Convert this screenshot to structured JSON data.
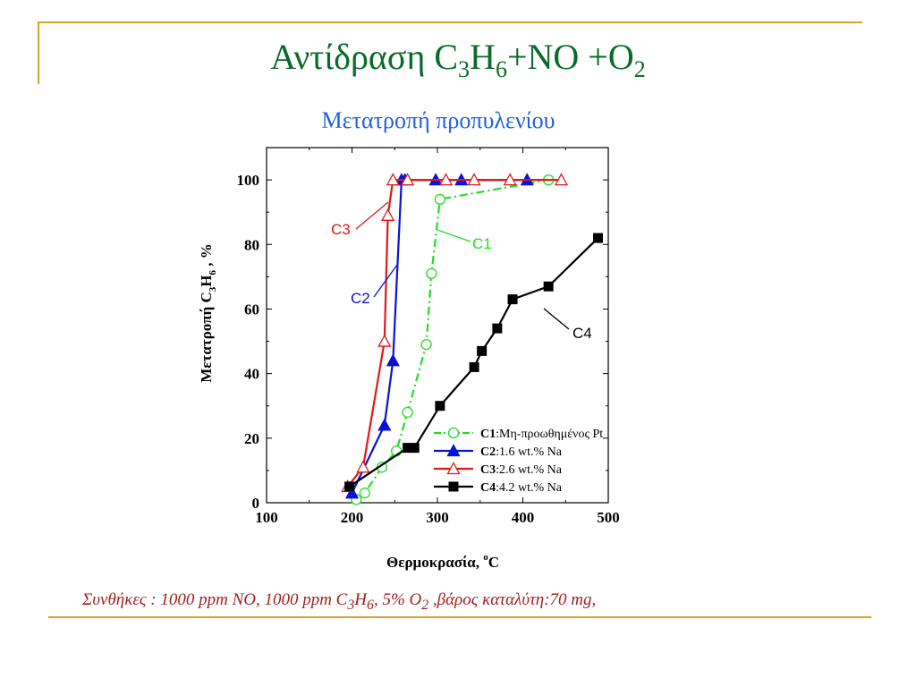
{
  "title_main": "Αντίδραση C",
  "title_sub1": "3",
  "title_mid": "H",
  "title_sub2": "6",
  "title_mid2": "+NO +O",
  "title_sub3": "2",
  "subtitle": "Μετατροπή προπυλενίου",
  "conditions": {
    "p1": "Συνθήκες : 1000 ppm NO, 1000 ppm C",
    "s1": "3",
    "p2": "H",
    "s2": "6",
    "p3": ", 5% O",
    "s3": "2",
    "p4": " ,βάρος καταλύτη:70 mg,"
  },
  "chart_data": {
    "type": "line",
    "xlabel_text": "Θερμοκρασία, ",
    "xlabel_sup": "o",
    "xlabel_unit": "C",
    "ylabel_text": "Μετατροπή C",
    "ylabel_s1": "3",
    "ylabel_mid": "H",
    "ylabel_s2": "6",
    "ylabel_unit": " , %",
    "xlim": [
      100,
      500
    ],
    "ylim": [
      0,
      110
    ],
    "xticks": [
      100,
      200,
      300,
      400,
      500
    ],
    "yticks": [
      0,
      20,
      40,
      60,
      80,
      100
    ],
    "grid": false,
    "legend_position": "bottom-right",
    "series": [
      {
        "name": "C1",
        "legend_bold": "C1",
        "legend_rest": ":Μη-προωθημένος Pt",
        "callout": "C1",
        "color": "#22dd22",
        "marker": "circle-open",
        "dashed": true,
        "x": [
          205,
          215,
          235,
          252,
          265,
          287,
          293,
          303,
          430
        ],
        "y": [
          1,
          3,
          11,
          16,
          28,
          49,
          71,
          94,
          100
        ]
      },
      {
        "name": "C2",
        "legend_bold": "C2",
        "legend_rest": ":1.6 wt.% Na",
        "callout": "C2",
        "color": "#0a12d6",
        "marker": "triangle-filled",
        "dashed": false,
        "x": [
          200,
          238,
          248,
          258,
          262,
          298,
          328,
          405
        ],
        "y": [
          3,
          24,
          44,
          100,
          100,
          100,
          100,
          100
        ]
      },
      {
        "name": "C3",
        "legend_bold": "C3",
        "legend_rest": ":2.6 wt.% Na",
        "callout": "C3",
        "color": "#e01818",
        "marker": "triangle-open",
        "dashed": false,
        "x": [
          195,
          213,
          238,
          242,
          248,
          265,
          310,
          343,
          385,
          445
        ],
        "y": [
          5,
          11,
          50,
          89,
          100,
          100,
          100,
          100,
          100,
          100
        ]
      },
      {
        "name": "C4",
        "legend_bold": "C4",
        "legend_rest": ":4.2 wt.% Na",
        "callout": "C4",
        "color": "#000000",
        "marker": "square-filled",
        "dashed": false,
        "x": [
          197,
          265,
          273,
          303,
          343,
          352,
          370,
          388,
          430,
          488
        ],
        "y": [
          5,
          17,
          17,
          30,
          42,
          47,
          54,
          63,
          67,
          82
        ]
      }
    ]
  }
}
